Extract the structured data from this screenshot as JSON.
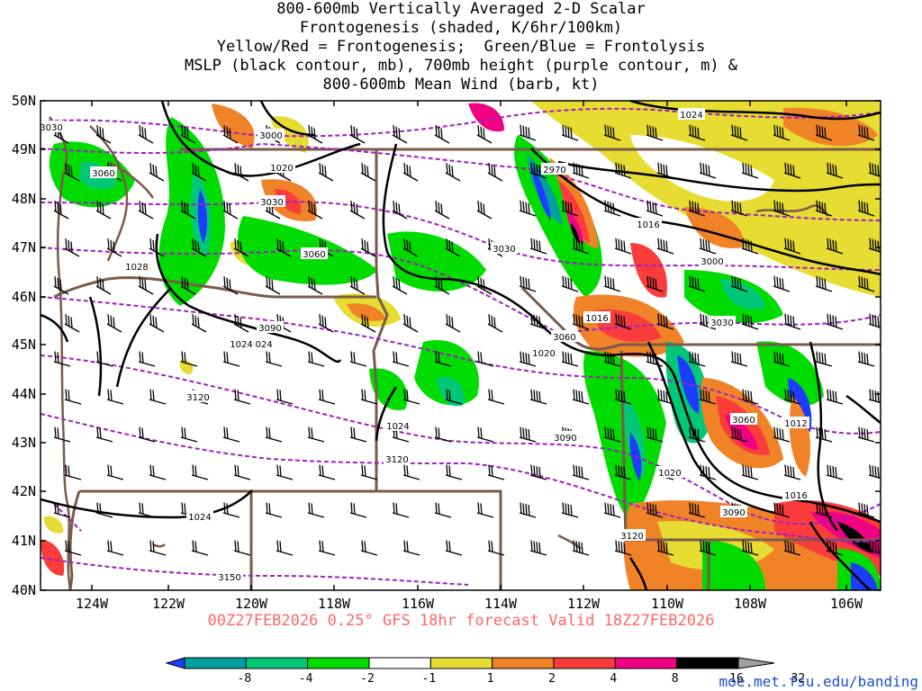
{
  "title_lines": [
    "800-600mb Vertically Averaged 2-D Scalar",
    "Frontogenesis (shaded, K/6hr/100km)",
    "Yellow/Red = Frontogenesis;  Green/Blue = Frontolysis",
    "MSLP (black contour, mb), 700mb height (purple contour, m) &",
    "800-600mb Mean Wind (barb, kt)"
  ],
  "lat_labels": [
    "50N",
    "49N",
    "48N",
    "47N",
    "46N",
    "45N",
    "44N",
    "43N",
    "42N",
    "41N",
    "40N"
  ],
  "lon_labels": [
    "124W",
    "122W",
    "120W",
    "118W",
    "116W",
    "114W",
    "112W",
    "110W",
    "108W",
    "106W"
  ],
  "valid_line": "00Z27FEB2026 0.25° GFS 18hr forecast Valid 18Z27FEB2026",
  "credit": "moe.met.fsu.edu/banding",
  "colorbar": {
    "labels": [
      "-8",
      "-4",
      "-2",
      "-1",
      "1",
      "2",
      "4",
      "8",
      "16",
      "32"
    ],
    "colors": [
      "#1e3cff",
      "#00a0a0",
      "#00c878",
      "#00dc00",
      "#ffffff",
      "#e6dc32",
      "#f08228",
      "#fa3c3c",
      "#f00082",
      "#000000",
      "#a0a0a0"
    ]
  },
  "contour_labels": {
    "mslp": [
      "1024",
      "1020",
      "1028",
      "1024",
      "1016",
      "1016",
      "1020",
      "1024",
      "1020",
      "1012",
      "1016",
      "1024",
      "1024"
    ],
    "height": [
      "3030",
      "3000",
      "3060",
      "3030",
      "3060",
      "3090",
      "3120",
      "3120",
      "3060",
      "3030",
      "3000",
      "3030",
      "3060",
      "3090",
      "3120",
      "3150",
      "2970",
      "3090"
    ]
  },
  "colors": {
    "mslp": "#000000",
    "height": "#a020c0",
    "borders": "#7a5a4a",
    "barbs": "#000000",
    "valid_text": "#ff6666",
    "credit": "#1a4fd0"
  }
}
